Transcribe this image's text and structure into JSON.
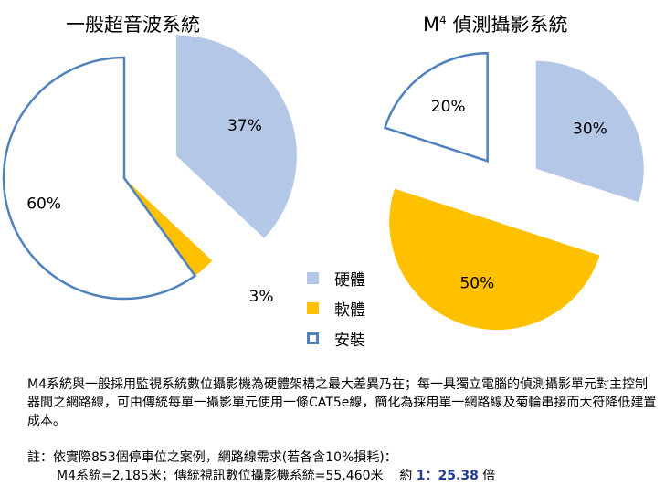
{
  "colors": {
    "hardware": "#b4c7e7",
    "software": "#ffc000",
    "install_stroke": "#4f81bd"
  },
  "chart_data": [
    {
      "type": "pie",
      "title": "一般超音波系統",
      "slices": [
        {
          "label": "硬體",
          "value": 37,
          "display": "37%"
        },
        {
          "label": "軟體",
          "value": 3,
          "display": "3%"
        },
        {
          "label": "安裝",
          "value": 60,
          "display": "60%"
        }
      ]
    },
    {
      "type": "pie",
      "title_base": "M",
      "title_sup": "4",
      "title_rest": " 偵測攝影系統",
      "slices": [
        {
          "label": "硬體",
          "value": 30,
          "display": "30%"
        },
        {
          "label": "軟體",
          "value": 50,
          "display": "50%"
        },
        {
          "label": "安裝",
          "value": 20,
          "display": "20%"
        }
      ]
    }
  ],
  "legend": [
    {
      "label": "硬體",
      "style": "fill",
      "color": "#b4c7e7"
    },
    {
      "label": "軟體",
      "style": "fill",
      "color": "#ffc000"
    },
    {
      "label": "安裝",
      "style": "outline",
      "color": "#4f81bd"
    }
  ],
  "notes": {
    "paragraph": "M4系統與一般採用監視系統數位攝影機為硬體架構之最大差異乃在；每一具獨立電腦的偵測攝影單元對主控制器間之網路線，可由傳統每單一攝影單元使用一條CAT5e線，簡化為採用單一網路線及菊輪串接而大符降低建置成本。",
    "note_line": "註：依實際853個停車位之案例，網路線需求(若各含10%損耗)：",
    "calc_prefix": "M4系統=2,185米；傳統視訊數位攝影機系統=55,460米",
    "approx": "約",
    "ratio": "1：25.38",
    "unit": "倍"
  }
}
